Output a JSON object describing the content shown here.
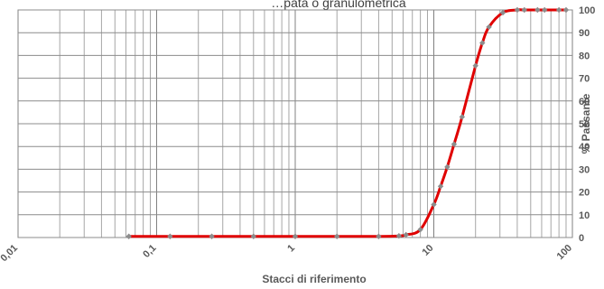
{
  "chart_data": {
    "type": "line",
    "title": "…pata o granulometrica",
    "xlabel": "Stacci di riferimento",
    "ylabel": "% Passante",
    "x_scale": "log",
    "xlim": [
      0.01,
      100
    ],
    "ylim": [
      0,
      100
    ],
    "grid": true,
    "x_tick_labels": [
      "0,01",
      "0,1",
      "1",
      "10",
      "100"
    ],
    "y_tick_labels": [
      "0",
      "10",
      "20",
      "30",
      "40",
      "50",
      "60",
      "70",
      "80",
      "90",
      "100"
    ],
    "series": [
      {
        "color": "#e00000",
        "marker_color": "#8c8c8c",
        "x": [
          0.063,
          0.125,
          0.25,
          0.5,
          1,
          2,
          4,
          5.6,
          6.3,
          8,
          10,
          11.2,
          12.5,
          14,
          16,
          20,
          22.4,
          25,
          31.5,
          40,
          45,
          56,
          63,
          80,
          90
        ],
        "y": [
          0.5,
          0.5,
          0.5,
          0.5,
          0.5,
          0.5,
          0.5,
          0.7,
          1.2,
          3.5,
          14.5,
          22.5,
          31,
          41,
          53,
          75.5,
          85.5,
          92.5,
          98.8,
          100,
          100,
          100,
          100,
          100,
          100
        ]
      }
    ]
  }
}
